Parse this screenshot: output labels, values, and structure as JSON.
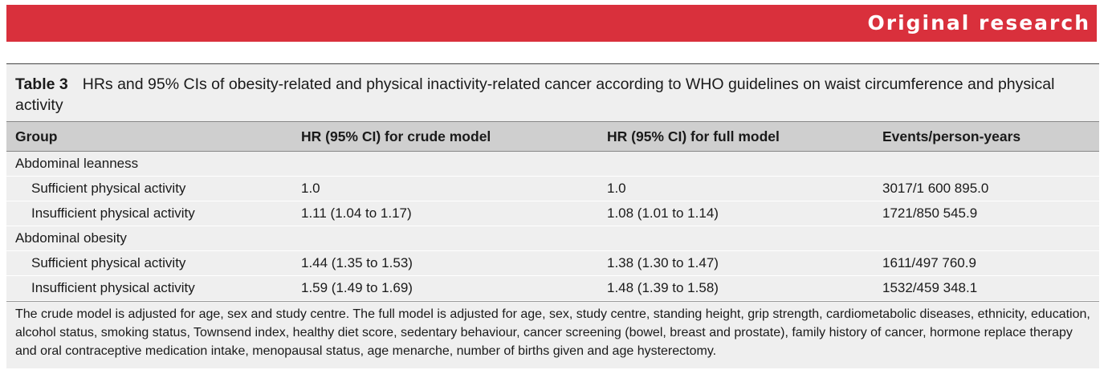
{
  "banner": {
    "title": "Original research"
  },
  "table": {
    "label": "Table 3",
    "caption": "HRs and 95% CIs of obesity-related and physical inactivity-related cancer according to WHO guidelines on waist circumference and physical activity",
    "columns": [
      "Group",
      "HR (95% CI) for crude model",
      "HR (95% CI) for full model",
      "Events/person-years"
    ],
    "groups": [
      {
        "name": "Abdominal leanness",
        "rows": [
          {
            "label": "Sufficient physical activity",
            "crude": "1.0",
            "full": "1.0",
            "events": "3017/1 600 895.0"
          },
          {
            "label": "Insufficient physical activity",
            "crude": "1.11 (1.04 to 1.17)",
            "full": "1.08 (1.01 to 1.14)",
            "events": "1721/850 545.9"
          }
        ]
      },
      {
        "name": "Abdominal obesity",
        "rows": [
          {
            "label": "Sufficient physical activity",
            "crude": "1.44 (1.35 to 1.53)",
            "full": "1.38 (1.30 to 1.47)",
            "events": "1611/497 760.9"
          },
          {
            "label": "Insufficient physical activity",
            "crude": "1.59 (1.49 to 1.69)",
            "full": "1.48 (1.39 to 1.58)",
            "events": "1532/459 348.1"
          }
        ]
      }
    ],
    "footnote": "The crude model is adjusted for age, sex and study centre. The full model is adjusted for age, sex, study centre, standing height, grip strength, cardiometabolic diseases, ethnicity, education, alcohol status, smoking status, Townsend index, healthy diet score, sedentary behaviour, cancer screening (bowel, breast and prostate), family history of cancer, hormone replace therapy and oral contraceptive medication intake, menopausal status, age menarche, number of births given and age hysterectomy."
  },
  "colors": {
    "banner": "#d9303c",
    "table_bg": "#efefef",
    "header_bg": "#cfcfcf"
  }
}
